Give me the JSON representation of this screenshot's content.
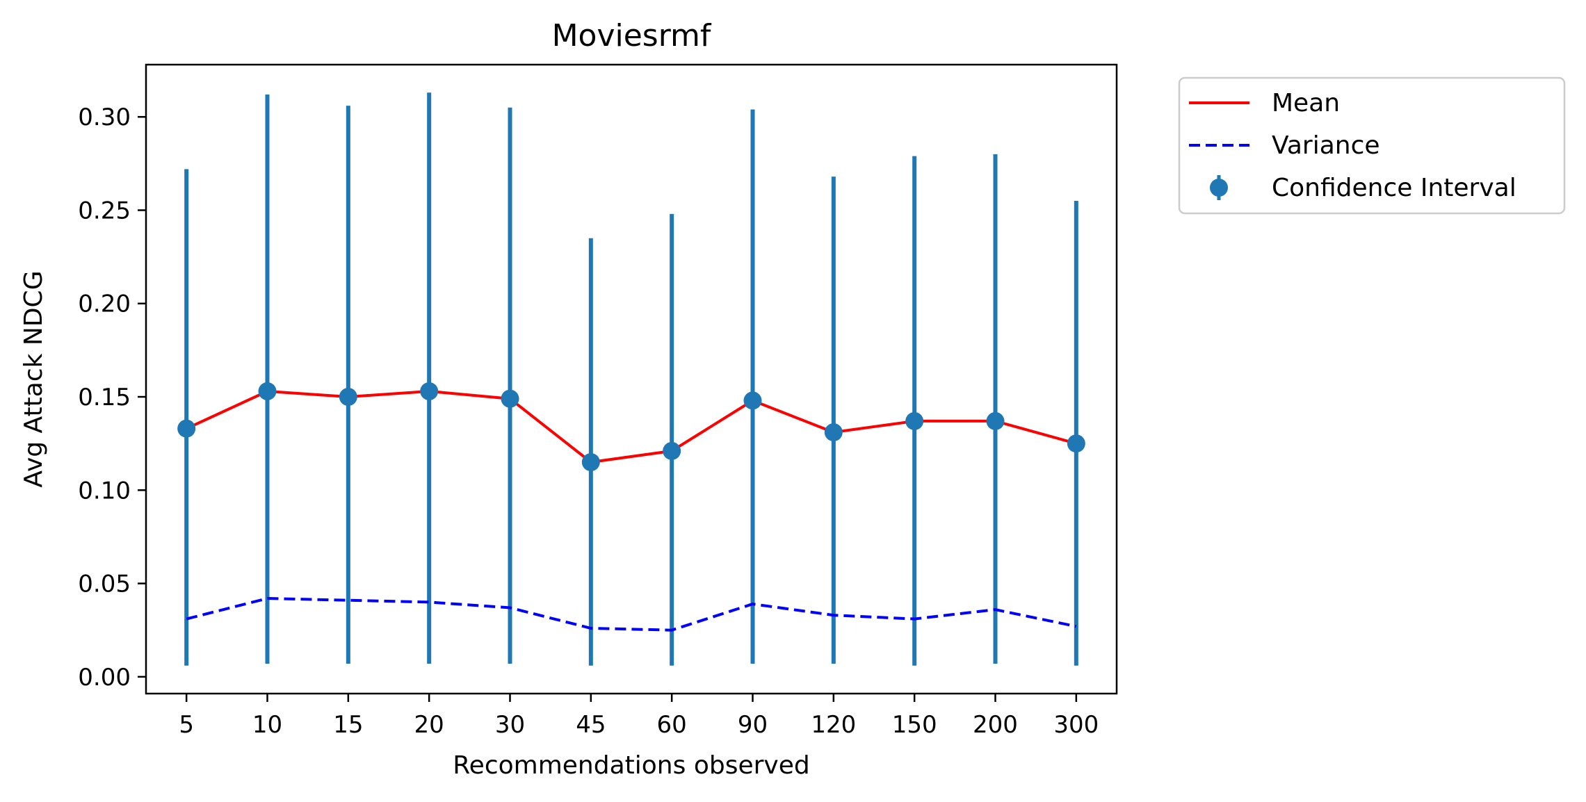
{
  "chart_data": {
    "type": "line",
    "title": "Moviesrmf",
    "xlabel": "Recommendations observed",
    "ylabel": "Avg Attack NDCG",
    "categories": [
      "5",
      "10",
      "15",
      "20",
      "30",
      "45",
      "60",
      "90",
      "120",
      "150",
      "200",
      "300"
    ],
    "ylim": [
      -0.009,
      0.328
    ],
    "yticks": [
      "0.00",
      "0.05",
      "0.10",
      "0.15",
      "0.20",
      "0.25",
      "0.30"
    ],
    "grid": false,
    "legend_position": "outside-top-right",
    "series": [
      {
        "name": "Mean",
        "style": "solid",
        "color": "#ff0000",
        "values": [
          0.133,
          0.153,
          0.15,
          0.153,
          0.149,
          0.115,
          0.121,
          0.148,
          0.131,
          0.137,
          0.137,
          0.125
        ]
      },
      {
        "name": "Variance",
        "style": "dashed",
        "color": "#0000ff",
        "values": [
          0.031,
          0.042,
          0.041,
          0.04,
          0.037,
          0.026,
          0.025,
          0.039,
          0.033,
          0.031,
          0.036,
          0.027
        ]
      },
      {
        "name": "Confidence Interval",
        "style": "errorbar",
        "color": "#1f77b4",
        "values": [
          0.133,
          0.153,
          0.15,
          0.153,
          0.149,
          0.115,
          0.121,
          0.148,
          0.131,
          0.137,
          0.137,
          0.125
        ],
        "lower": [
          0.006,
          0.007,
          0.007,
          0.007,
          0.007,
          0.006,
          0.006,
          0.007,
          0.007,
          0.006,
          0.007,
          0.006
        ],
        "upper": [
          0.272,
          0.312,
          0.306,
          0.313,
          0.305,
          0.235,
          0.248,
          0.304,
          0.268,
          0.279,
          0.28,
          0.255
        ]
      }
    ]
  }
}
